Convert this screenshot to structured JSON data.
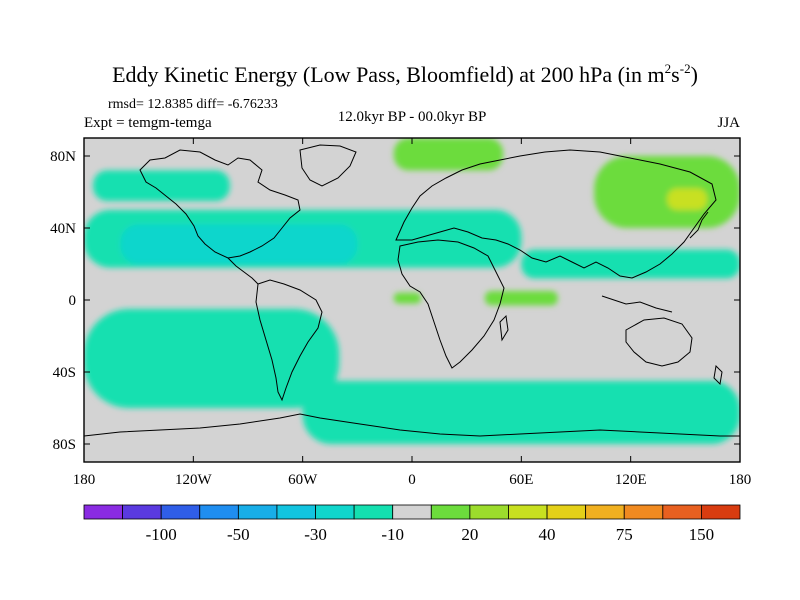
{
  "chart_data": {
    "type": "heatmap",
    "title_main": "Eddy Kinetic Energy (Low Pass, Bloomfield) at 200 hPa (in m",
    "title_sup1": "2",
    "title_s": "s",
    "title_sup2": "-2",
    "title_close": ")",
    "stats": "rmsd= 12.8385 diff= -6.76233",
    "expt": "Expt = temgm-temga",
    "center_label": "12.0kyr BP - 00.0kyr BP",
    "season": "JJA",
    "xticks": [
      {
        "value": -180,
        "label": "180"
      },
      {
        "value": -120,
        "label": "120W"
      },
      {
        "value": -60,
        "label": "60W"
      },
      {
        "value": 0,
        "label": "0"
      },
      {
        "value": 60,
        "label": "60E"
      },
      {
        "value": 120,
        "label": "120E"
      },
      {
        "value": 180,
        "label": "180"
      }
    ],
    "yticks": [
      {
        "value": 80,
        "label": "80N"
      },
      {
        "value": 40,
        "label": "40N"
      },
      {
        "value": 0,
        "label": "0"
      },
      {
        "value": -40,
        "label": "40S"
      },
      {
        "value": -80,
        "label": "80S"
      }
    ],
    "xlim": [
      -180,
      180
    ],
    "ylim": [
      -90,
      90
    ],
    "colorbar": {
      "colors": [
        "#8a2be2",
        "#5a3ae0",
        "#2f5ee8",
        "#1f8ef0",
        "#18aee8",
        "#12c4e0",
        "#10d6cc",
        "#14e0b0",
        "#d3d3d3",
        "#6cdc3c",
        "#9cdc2c",
        "#c8e020",
        "#e4d018",
        "#f0b020",
        "#f08a20",
        "#e86020",
        "#d83c10"
      ],
      "labels": [
        {
          "boundary": 1.5,
          "text": "-100"
        },
        {
          "boundary": 3.5,
          "text": "-50"
        },
        {
          "boundary": 5.5,
          "text": "-30"
        },
        {
          "boundary": 7.5,
          "text": "-10"
        },
        {
          "boundary": 9.5,
          "text": "20"
        },
        {
          "boundary": 11.5,
          "text": "40"
        },
        {
          "boundary": 13.5,
          "text": "75"
        },
        {
          "boundary": 15.5,
          "text": "150"
        }
      ]
    },
    "field_base_color": "#d3d3d3",
    "anomaly_regions": [
      {
        "name": "north-pacific-negative",
        "color": "#14e0b0",
        "bounds_lon": [
          -175,
          -100
        ],
        "bounds_lat": [
          55,
          72
        ]
      },
      {
        "name": "north-atlantic-negative",
        "color": "#14e0b0",
        "bounds_lon": [
          -180,
          60
        ],
        "bounds_lat": [
          18,
          50
        ]
      },
      {
        "name": "central-atlantic-core",
        "color": "#10d6cc",
        "bounds_lon": [
          -160,
          -30
        ],
        "bounds_lat": [
          20,
          42
        ]
      },
      {
        "name": "asia-negative-band",
        "color": "#14e0b0",
        "bounds_lon": [
          60,
          180
        ],
        "bounds_lat": [
          12,
          28
        ]
      },
      {
        "name": "south-pacific-negative",
        "color": "#14e0b0",
        "bounds_lon": [
          -180,
          -40
        ],
        "bounds_lat": [
          -60,
          -5
        ]
      },
      {
        "name": "southern-ocean-negative",
        "color": "#14e0b0",
        "bounds_lon": [
          -60,
          180
        ],
        "bounds_lat": [
          -80,
          -45
        ]
      },
      {
        "name": "arctic-positive",
        "color": "#6cdc3c",
        "bounds_lon": [
          -10,
          50
        ],
        "bounds_lat": [
          72,
          90
        ]
      },
      {
        "name": "siberia-positive",
        "color": "#6cdc3c",
        "bounds_lon": [
          100,
          180
        ],
        "bounds_lat": [
          40,
          80
        ]
      },
      {
        "name": "kamchatka-max",
        "color": "#c8e020",
        "bounds_lon": [
          140,
          162
        ],
        "bounds_lat": [
          50,
          62
        ]
      },
      {
        "name": "equatorial-atlantic-positive",
        "color": "#6cdc3c",
        "bounds_lon": [
          -10,
          5
        ],
        "bounds_lat": [
          -2,
          4
        ]
      },
      {
        "name": "equatorial-indian-positive",
        "color": "#6cdc3c",
        "bounds_lon": [
          40,
          80
        ],
        "bounds_lat": [
          -3,
          5
        ]
      }
    ]
  }
}
